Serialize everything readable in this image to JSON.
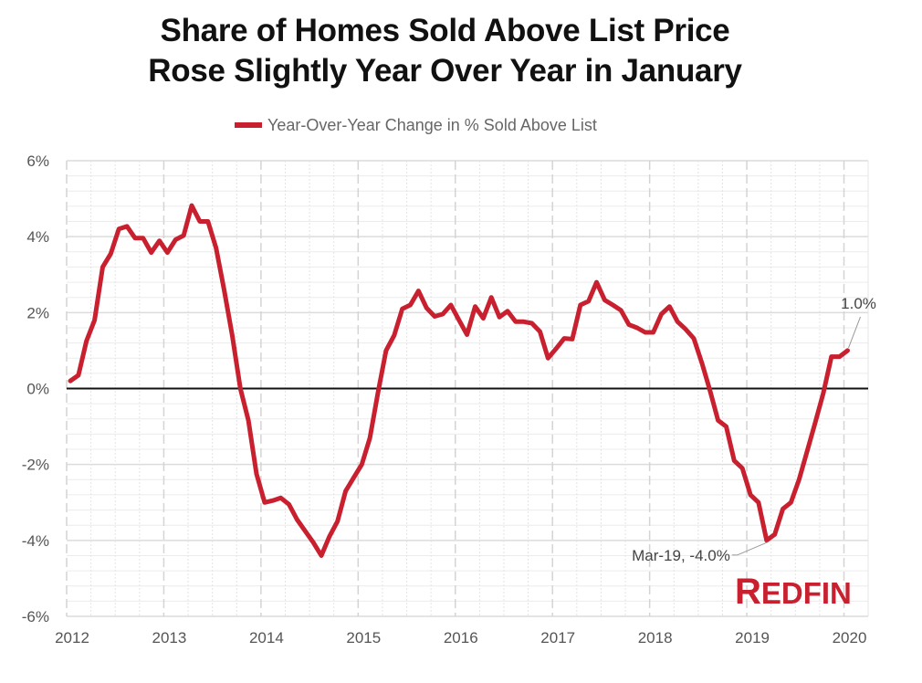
{
  "chart_data": {
    "type": "line",
    "title_lines": [
      "Share of Homes Sold Above List Price",
      "Rose Slightly Year Over Year in January"
    ],
    "xlabel": "",
    "ylabel": "",
    "legend": {
      "position": "top-center",
      "entries": [
        "Year-Over-Year Change in % Sold Above List"
      ]
    },
    "ylim": [
      -6,
      6
    ],
    "yticks": [
      6,
      4,
      2,
      0,
      -2,
      -4,
      -6
    ],
    "ytick_labels": [
      "6%",
      "4%",
      "2%",
      "0%",
      "-2%",
      "-4%",
      "-6%"
    ],
    "xlim": [
      "2012-01",
      "2020-04"
    ],
    "xticks": [
      "2012",
      "2013",
      "2014",
      "2015",
      "2016",
      "2017",
      "2018",
      "2019",
      "2020"
    ],
    "grid": true,
    "x_start": "2012-01",
    "x_frequency": "monthly",
    "series": [
      {
        "name": "Year-Over-Year Change in % Sold Above List",
        "color": "#c8202f",
        "unit": "%",
        "values": [
          0.2,
          0.35,
          1.25,
          1.8,
          3.2,
          3.55,
          4.2,
          4.27,
          3.96,
          3.96,
          3.58,
          3.89,
          3.58,
          3.92,
          4.03,
          4.82,
          4.4,
          4.4,
          3.7,
          2.6,
          1.4,
          0.0,
          -0.84,
          -2.25,
          -3.0,
          -2.95,
          -2.88,
          -3.05,
          -3.45,
          -3.75,
          -4.05,
          -4.4,
          -3.9,
          -3.5,
          -2.7,
          -2.35,
          -2.0,
          -1.3,
          -0.1,
          1.0,
          1.4,
          2.1,
          2.2,
          2.57,
          2.12,
          1.9,
          1.96,
          2.2,
          1.8,
          1.42,
          2.16,
          1.85,
          2.4,
          1.88,
          2.04,
          1.76,
          1.76,
          1.72,
          1.5,
          0.8,
          1.05,
          1.32,
          1.3,
          2.2,
          2.3,
          2.8,
          2.33,
          2.2,
          2.06,
          1.68,
          1.6,
          1.48,
          1.48,
          1.96,
          2.16,
          1.76,
          1.56,
          1.32,
          0.67,
          -0.05,
          -0.84,
          -1.0,
          -1.9,
          -2.1,
          -2.8,
          -3.0,
          -4.0,
          -3.84,
          -3.17,
          -3.0,
          -2.4,
          -1.65,
          -0.9,
          -0.12,
          0.84,
          0.84,
          1.0
        ]
      }
    ],
    "annotations": [
      {
        "text": "1.0%",
        "point_index": 96,
        "value": 1.0,
        "placement": "above-right"
      },
      {
        "text": "Mar-19, -4.0%",
        "point_index": 86,
        "value": -4.0,
        "placement": "left"
      }
    ],
    "branding": {
      "logo_text_first": "R",
      "logo_text_rest": "EDFIN",
      "color": "#c8202f"
    }
  }
}
